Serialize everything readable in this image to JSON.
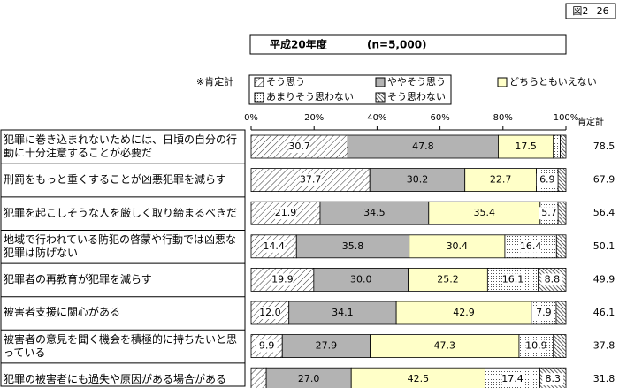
{
  "figure_label": "図2−26",
  "chart_data": {
    "type": "stacked-barh",
    "title": "平成20年度",
    "subtitle": "(n=5,000)",
    "legend_title": "※肯定計",
    "categories": [
      "犯罪に巻き込まれないためには、日頃の自分の行動に十分注意することが必要だ",
      "刑罰をもっと重くすることが凶悪犯罪を減らす",
      "犯罪を起こしそうな人を厳しく取り締まるべきだ",
      "地域で行われている防犯の啓蒙や行動では凶悪な犯罪は防げない",
      "犯罪者の再教育が犯罪を減らす",
      "被害者支援に関心がある",
      "被害者の意見を聞く機会を積極的に持ちたいと思っている",
      "犯罪の被害者にも過失や原因がある場合がある"
    ],
    "series": [
      {
        "name": "そう思う",
        "color": "#ffffff",
        "pattern": "hatch",
        "values": [
          30.7,
          37.7,
          21.9,
          14.4,
          19.9,
          12.0,
          9.9,
          4.8
        ],
        "value_labels": [
          "30.7",
          "37.7",
          "21.9",
          "14.4",
          "19.9",
          "12.0",
          "9.9",
          null
        ]
      },
      {
        "name": "ややそう思う",
        "color": "#b3b3b3",
        "pattern": "solid",
        "values": [
          47.8,
          30.2,
          34.5,
          35.8,
          30.0,
          34.1,
          27.9,
          27.0
        ],
        "value_labels": [
          "47.8",
          "30.2",
          "34.5",
          "35.8",
          "30.0",
          "34.1",
          "27.9",
          "27.0"
        ]
      },
      {
        "name": "どちらともいえない",
        "color": "#ffffc8",
        "pattern": "solid",
        "values": [
          17.5,
          22.7,
          35.4,
          30.4,
          25.2,
          42.9,
          47.3,
          42.5
        ],
        "value_labels": [
          "17.5",
          "22.7",
          "35.4",
          "30.4",
          "25.2",
          "42.9",
          "47.3",
          "42.5"
        ]
      },
      {
        "name": "あまりそう思わない",
        "color": "#ffffff",
        "pattern": "dots",
        "values": [
          2.2,
          6.9,
          5.7,
          16.4,
          16.1,
          7.9,
          10.9,
          17.4
        ],
        "value_labels": [
          null,
          "6.9",
          "5.7",
          "16.4",
          "16.1",
          "7.9",
          "10.9",
          "17.4"
        ]
      },
      {
        "name": "そう思わない",
        "color": "#ffffff",
        "pattern": "dense",
        "values": [
          1.8,
          2.5,
          2.5,
          3.0,
          8.8,
          3.1,
          4.0,
          8.3
        ],
        "value_labels": [
          null,
          null,
          null,
          null,
          "8.8",
          null,
          null,
          "8.3"
        ]
      }
    ],
    "xlim": [
      0,
      100
    ],
    "xticks": [
      {
        "value": 0,
        "label": "0%"
      },
      {
        "value": 20,
        "label": "20%"
      },
      {
        "value": 40,
        "label": "40%"
      },
      {
        "value": 60,
        "label": "60%"
      },
      {
        "value": 80,
        "label": "80%"
      },
      {
        "value": 100,
        "label": "100%"
      }
    ],
    "totals": {
      "label": "肯定計",
      "values": [
        78.5,
        67.9,
        56.4,
        50.1,
        49.9,
        46.1,
        37.8,
        31.8
      ]
    }
  }
}
